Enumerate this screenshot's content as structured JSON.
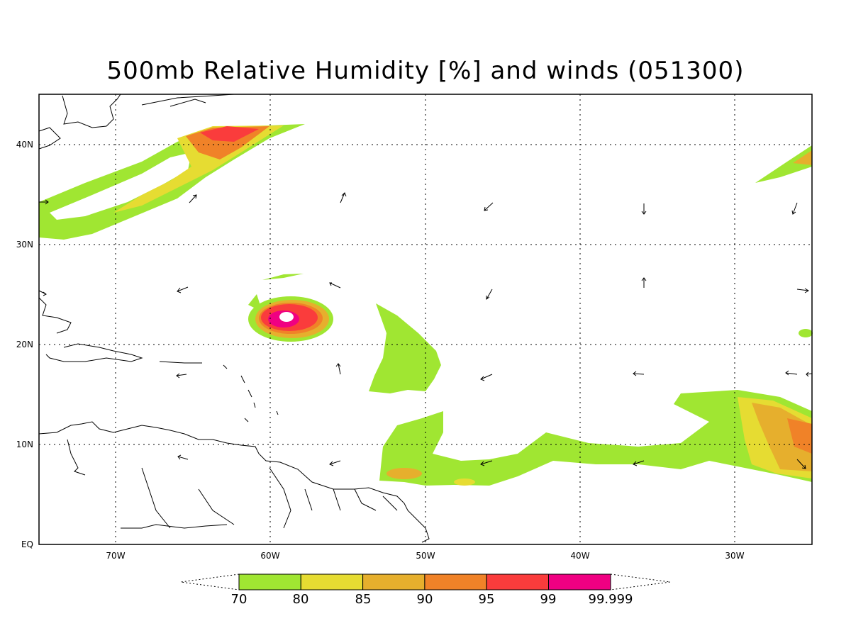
{
  "title": "500mb Relative Humidity [%] and winds (051300)",
  "axes": {
    "lon_ticks": [
      "70W",
      "60W",
      "50W",
      "40W",
      "30W"
    ],
    "lat_ticks": [
      "40N",
      "30N",
      "20N",
      "10N",
      "EQ"
    ],
    "lon_range": [
      -75,
      -25
    ],
    "lat_range": [
      0,
      45
    ],
    "grid": "dotted"
  },
  "colorbar": {
    "levels": [
      "70",
      "80",
      "85",
      "90",
      "95",
      "99",
      "99.999"
    ],
    "colors": [
      "#a0e632",
      "#e6dc32",
      "#e6af2d",
      "#f08228",
      "#fa3c3c",
      "#f00082"
    ]
  },
  "colors": {
    "rh_70": "#a0e632",
    "rh_80": "#e6dc32",
    "rh_85": "#e6af2d",
    "rh_90": "#f08228",
    "rh_95": "#fa3c3c",
    "rh_99": "#f00082"
  }
}
